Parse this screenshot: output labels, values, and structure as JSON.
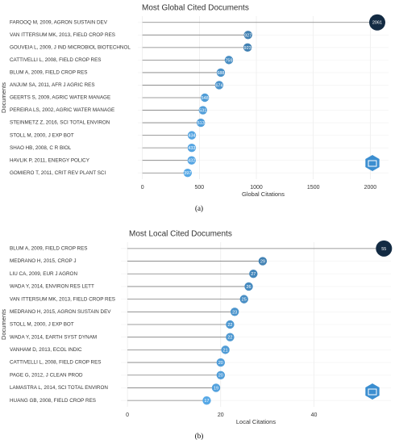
{
  "chart_data": [
    {
      "type": "lollipop",
      "title": "Most Global Cited Documents",
      "y_label": "Documents",
      "x_label": "Global Citations",
      "caption": "(a)",
      "categories": [
        "FAROOQ M, 2009, AGRON SUSTAIN DEV",
        "VAN ITTERSUM MK, 2013, FIELD CROP RES",
        "GOUVEIA L, 2009, J IND MICROBIOL BIOTECHNOL",
        "CATTIVELLI L, 2008, FIELD CROP RES",
        "BLUM A, 2009, FIELD CROP RES",
        "ANJUM SA, 2011, AFR J AGRIC RES",
        "GEERTS S, 2009, AGRIC WATER MANAGE",
        "PEREIRA LS, 2002, AGRIC WATER MANAGE",
        "STEINMETZ Z, 2016, SCI TOTAL ENVIRON",
        "STOLL M, 2000, J EXP BOT",
        "SHAO HB, 2008, C R BIOL",
        "HAVLIK P, 2011, ENERGY POLICY",
        "GOMIERO T, 2011, CRIT REV PLANT SCI"
      ],
      "values": [
        2061,
        927,
        923,
        759,
        688,
        674,
        548,
        531,
        513,
        434,
        433,
        432,
        397
      ],
      "xlim": [
        -40,
        2160
      ],
      "xticks": [
        0,
        500,
        1000,
        1500,
        2000
      ],
      "grid": true,
      "color_low": "#56a8e6",
      "color_high": "#132b43"
    },
    {
      "type": "lollipop",
      "title": "Most Local Cited Documents",
      "y_label": "Documents",
      "x_label": "Local Citations",
      "caption": "(b)",
      "categories": [
        "BLUM A, 2009, FIELD CROP RES",
        "MEDRANO H, 2015, CROP J",
        "LIU CA, 2009, EUR J AGRON",
        "WADA Y, 2014, ENVIRON RES LETT",
        "VAN ITTERSUM MK, 2013, FIELD CROP RES",
        "MEDRANO H, 2015, AGRON SUSTAIN DEV",
        "STOLL M, 2000, J EXP BOT",
        "WADA Y, 2014, EARTH SYST DYNAM",
        "VANHAM D, 2013, ECOL INDIC",
        "CATTIVELLI L, 2008, FIELD CROP RES",
        "PAGE G, 2012, J CLEAN PROD",
        "LAMASTRA L, 2014, SCI TOTAL ENVIRON",
        "HUANG GB, 2008, FIELD CROP RES"
      ],
      "values": [
        55,
        29,
        27,
        26,
        25,
        23,
        22,
        22,
        21,
        20,
        20,
        19,
        17
      ],
      "xlim": [
        -1.4,
        56.5
      ],
      "xticks": [
        0,
        20,
        40
      ],
      "grid": true,
      "color_low": "#56a8e6",
      "color_high": "#132b43"
    }
  ]
}
